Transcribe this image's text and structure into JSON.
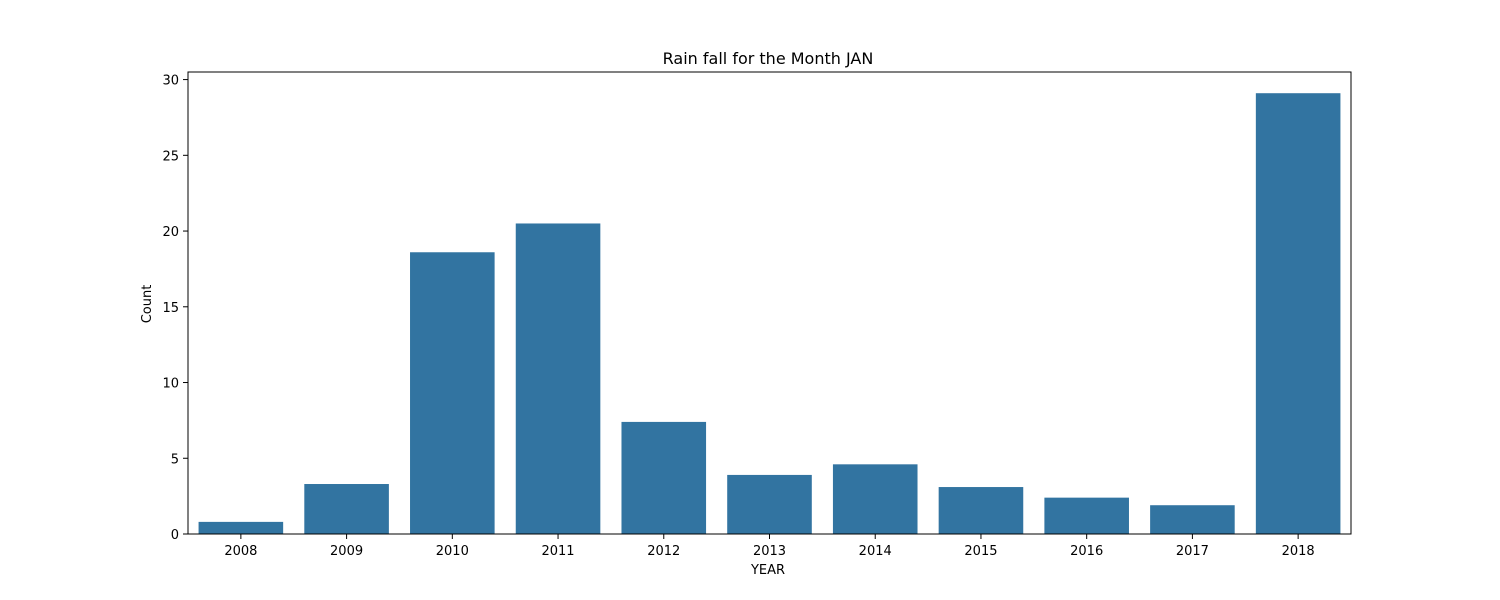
{
  "chart_data": {
    "type": "bar",
    "title": "Rain fall for the Month JAN",
    "xlabel": "YEAR",
    "ylabel": "Count",
    "categories": [
      "2008",
      "2009",
      "2010",
      "2011",
      "2012",
      "2013",
      "2014",
      "2015",
      "2016",
      "2017",
      "2018"
    ],
    "values": [
      0.8,
      3.3,
      18.6,
      20.5,
      7.4,
      3.9,
      4.6,
      3.1,
      2.4,
      1.9,
      29.1
    ],
    "ylim": [
      0,
      30.5
    ],
    "yticks": [
      0,
      5,
      10,
      15,
      20,
      25,
      30
    ],
    "grid": false,
    "legend": "none",
    "bar_color": "#3274a1"
  }
}
